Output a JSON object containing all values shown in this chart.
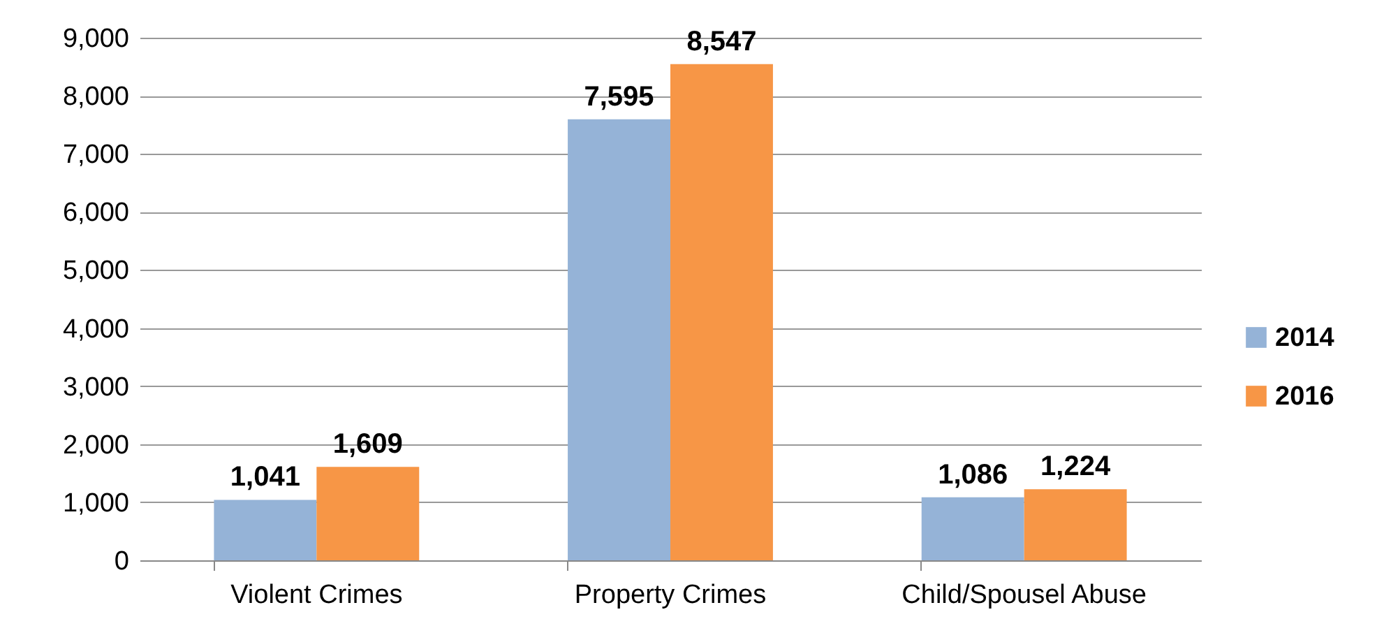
{
  "chart_data": {
    "type": "bar",
    "categories": [
      "Violent Crimes",
      "Property Crimes",
      "Child/Spousel Abuse"
    ],
    "series": [
      {
        "name": "2014",
        "color": "#95b3d7",
        "values": [
          1041,
          7595,
          1086
        ],
        "value_labels": [
          "1,041",
          "7,595",
          "1,086"
        ]
      },
      {
        "name": "2016",
        "color": "#f79646",
        "values": [
          1609,
          8547,
          1224
        ],
        "value_labels": [
          "1,609",
          "8,547",
          "1,224"
        ]
      }
    ],
    "ylim": [
      0,
      9000
    ],
    "yticks": [
      0,
      {
        "value": 1000,
        "label": "1,000"
      },
      {
        "value": 2000,
        "label": "2,000"
      },
      {
        "value": 3000,
        "label": "3,000"
      },
      {
        "value": 4000,
        "label": "4,000"
      },
      {
        "value": 5000,
        "label": "5,000"
      },
      {
        "value": 6000,
        "label": "6,000"
      },
      {
        "value": 7000,
        "label": "7,000"
      },
      {
        "value": 8000,
        "label": "8,000"
      },
      {
        "value": 9000,
        "label": "9,000"
      }
    ],
    "grid": "y",
    "legend": "right"
  }
}
